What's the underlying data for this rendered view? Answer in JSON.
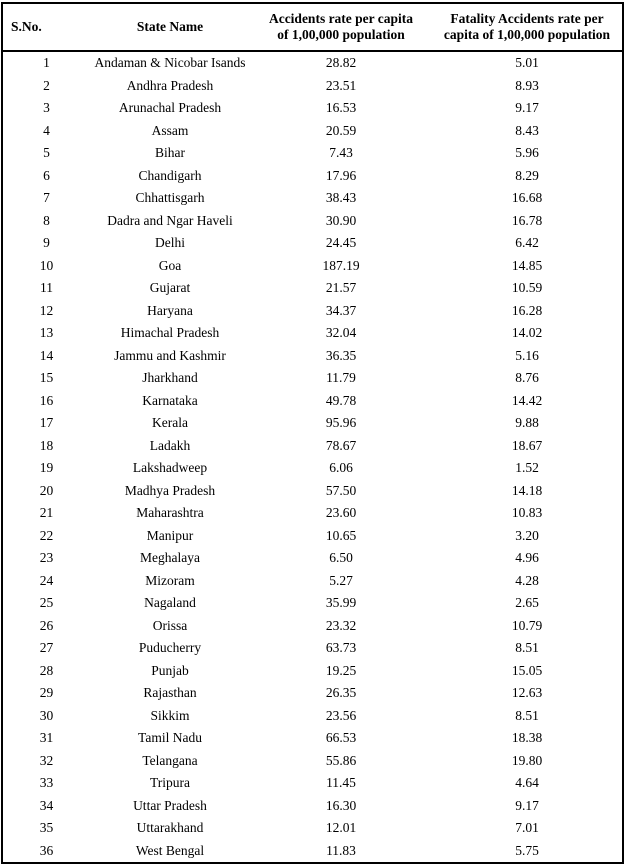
{
  "table": {
    "columns": [
      {
        "label": "S.No.",
        "line1": "S.No.",
        "line2": ""
      },
      {
        "label": "State Name",
        "line1": "State Name",
        "line2": ""
      },
      {
        "label": "Accidents rate per capita of 1,00,000 population",
        "line1": "Accidents rate per capita",
        "line2": "of 1,00,000 population"
      },
      {
        "label": "Fatality Accidents rate per capita of 1,00,000 population",
        "line1": "Fatality Accidents rate per",
        "line2": "capita of 1,00,000 population"
      }
    ],
    "rows": [
      [
        "1",
        "Andaman & Nicobar Isands",
        "28.82",
        "5.01"
      ],
      [
        "2",
        "Andhra Pradesh",
        "23.51",
        "8.93"
      ],
      [
        "3",
        "Arunachal Pradesh",
        "16.53",
        "9.17"
      ],
      [
        "4",
        "Assam",
        "20.59",
        "8.43"
      ],
      [
        "5",
        "Bihar",
        "7.43",
        "5.96"
      ],
      [
        "6",
        "Chandigarh",
        "17.96",
        "8.29"
      ],
      [
        "7",
        "Chhattisgarh",
        "38.43",
        "16.68"
      ],
      [
        "8",
        "Dadra and Ngar Haveli",
        "30.90",
        "16.78"
      ],
      [
        "9",
        "Delhi",
        "24.45",
        "6.42"
      ],
      [
        "10",
        "Goa",
        "187.19",
        "14.85"
      ],
      [
        "11",
        "Gujarat",
        "21.57",
        "10.59"
      ],
      [
        "12",
        "Haryana",
        "34.37",
        "16.28"
      ],
      [
        "13",
        "Himachal Pradesh",
        "32.04",
        "14.02"
      ],
      [
        "14",
        "Jammu and Kashmir",
        "36.35",
        "5.16"
      ],
      [
        "15",
        "Jharkhand",
        "11.79",
        "8.76"
      ],
      [
        "16",
        "Karnataka",
        "49.78",
        "14.42"
      ],
      [
        "17",
        "Kerala",
        "95.96",
        "9.88"
      ],
      [
        "18",
        "Ladakh",
        "78.67",
        "18.67"
      ],
      [
        "19",
        "Lakshadweep",
        "6.06",
        "1.52"
      ],
      [
        "20",
        "Madhya Pradesh",
        "57.50",
        "14.18"
      ],
      [
        "21",
        "Maharashtra",
        "23.60",
        "10.83"
      ],
      [
        "22",
        "Manipur",
        "10.65",
        "3.20"
      ],
      [
        "23",
        "Meghalaya",
        "6.50",
        "4.96"
      ],
      [
        "24",
        "Mizoram",
        "5.27",
        "4.28"
      ],
      [
        "25",
        "Nagaland",
        "35.99",
        "2.65"
      ],
      [
        "26",
        "Orissa",
        "23.32",
        "10.79"
      ],
      [
        "27",
        "Puducherry",
        "63.73",
        "8.51"
      ],
      [
        "28",
        "Punjab",
        "19.25",
        "15.05"
      ],
      [
        "29",
        "Rajasthan",
        "26.35",
        "12.63"
      ],
      [
        "30",
        "Sikkim",
        "23.56",
        "8.51"
      ],
      [
        "31",
        "Tamil Nadu",
        "66.53",
        "18.38"
      ],
      [
        "32",
        "Telangana",
        "55.86",
        "19.80"
      ],
      [
        "33",
        "Tripura",
        "11.45",
        "4.64"
      ],
      [
        "34",
        "Uttar Pradesh",
        "16.30",
        "9.17"
      ],
      [
        "35",
        "Uttarakhand",
        "12.01",
        "7.01"
      ],
      [
        "36",
        "West Bengal",
        "11.83",
        "5.75"
      ]
    ]
  },
  "colors": {
    "border": "#000000",
    "text": "#000000",
    "background": "#ffffff"
  }
}
